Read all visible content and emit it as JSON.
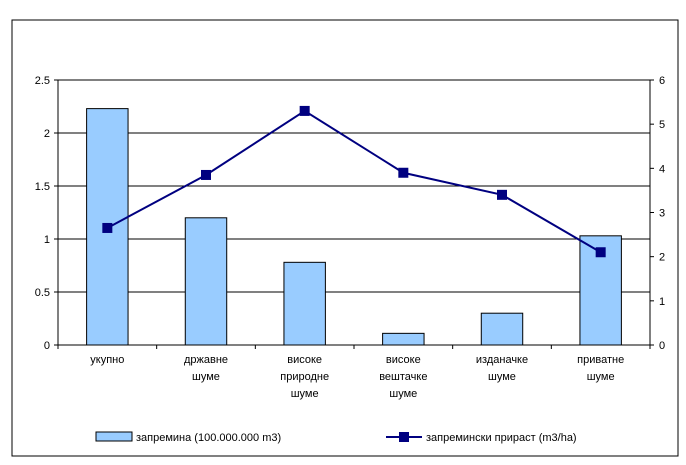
{
  "chart_data": {
    "type": "bar",
    "categories": [
      [
        "укупно"
      ],
      [
        "државне",
        "шуме"
      ],
      [
        "високе",
        "природне",
        "шуме"
      ],
      [
        "високе",
        "вештачке",
        "шуме"
      ],
      [
        "изданачке",
        "шуме"
      ],
      [
        "приватне",
        "шуме"
      ]
    ],
    "series": [
      {
        "name": "запремина (100.000.000 m3)",
        "type": "bar",
        "axis": "left",
        "color": "#99ccff",
        "values": [
          2.23,
          1.2,
          0.78,
          0.11,
          0.3,
          1.03
        ]
      },
      {
        "name": "запремински прираст (m3/ha)",
        "type": "line",
        "axis": "right",
        "color": "#000080",
        "values": [
          2.65,
          3.85,
          5.3,
          3.9,
          3.4,
          2.1
        ]
      }
    ],
    "y_left": {
      "min": 0,
      "max": 2.5,
      "ticks": [
        "0",
        "0.5",
        "1",
        "1.5",
        "2",
        "2.5"
      ]
    },
    "y_right": {
      "min": 0,
      "max": 6,
      "ticks": [
        "0",
        "1",
        "2",
        "3",
        "4",
        "5",
        "6"
      ]
    },
    "grid": true,
    "legend": "bottom"
  }
}
